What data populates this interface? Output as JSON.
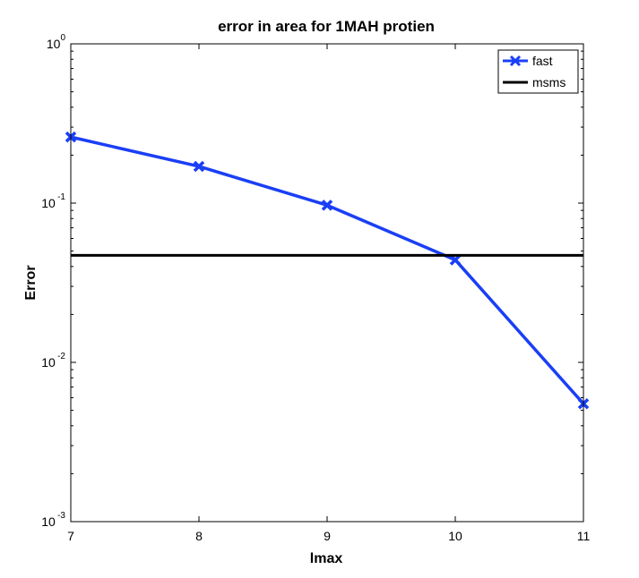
{
  "chart_data": {
    "type": "line",
    "title": "error in area for 1MAH protien",
    "xlabel": "lmax",
    "ylabel": "Error",
    "x_ticks": [
      "7",
      "8",
      "9",
      "10",
      "11"
    ],
    "y_ticks": [
      {
        "base": "10",
        "exp": "0",
        "value": 1
      },
      {
        "base": "10",
        "exp": "-1",
        "value": 0.1
      },
      {
        "base": "10",
        "exp": "-2",
        "value": 0.01
      },
      {
        "base": "10",
        "exp": "-3",
        "value": 0.001
      }
    ],
    "xlim": [
      7,
      11
    ],
    "ylim": [
      0.001,
      1
    ],
    "yscale": "log",
    "grid": false,
    "legend_position": "top-right",
    "series": [
      {
        "name": "fast",
        "color": "#1a3ff5",
        "marker": "x",
        "x": [
          7,
          8,
          9,
          10,
          11
        ],
        "y": [
          0.26,
          0.17,
          0.097,
          0.044,
          0.0055
        ]
      },
      {
        "name": "msms",
        "color": "#000000",
        "type": "hline",
        "y": 0.047
      }
    ]
  }
}
